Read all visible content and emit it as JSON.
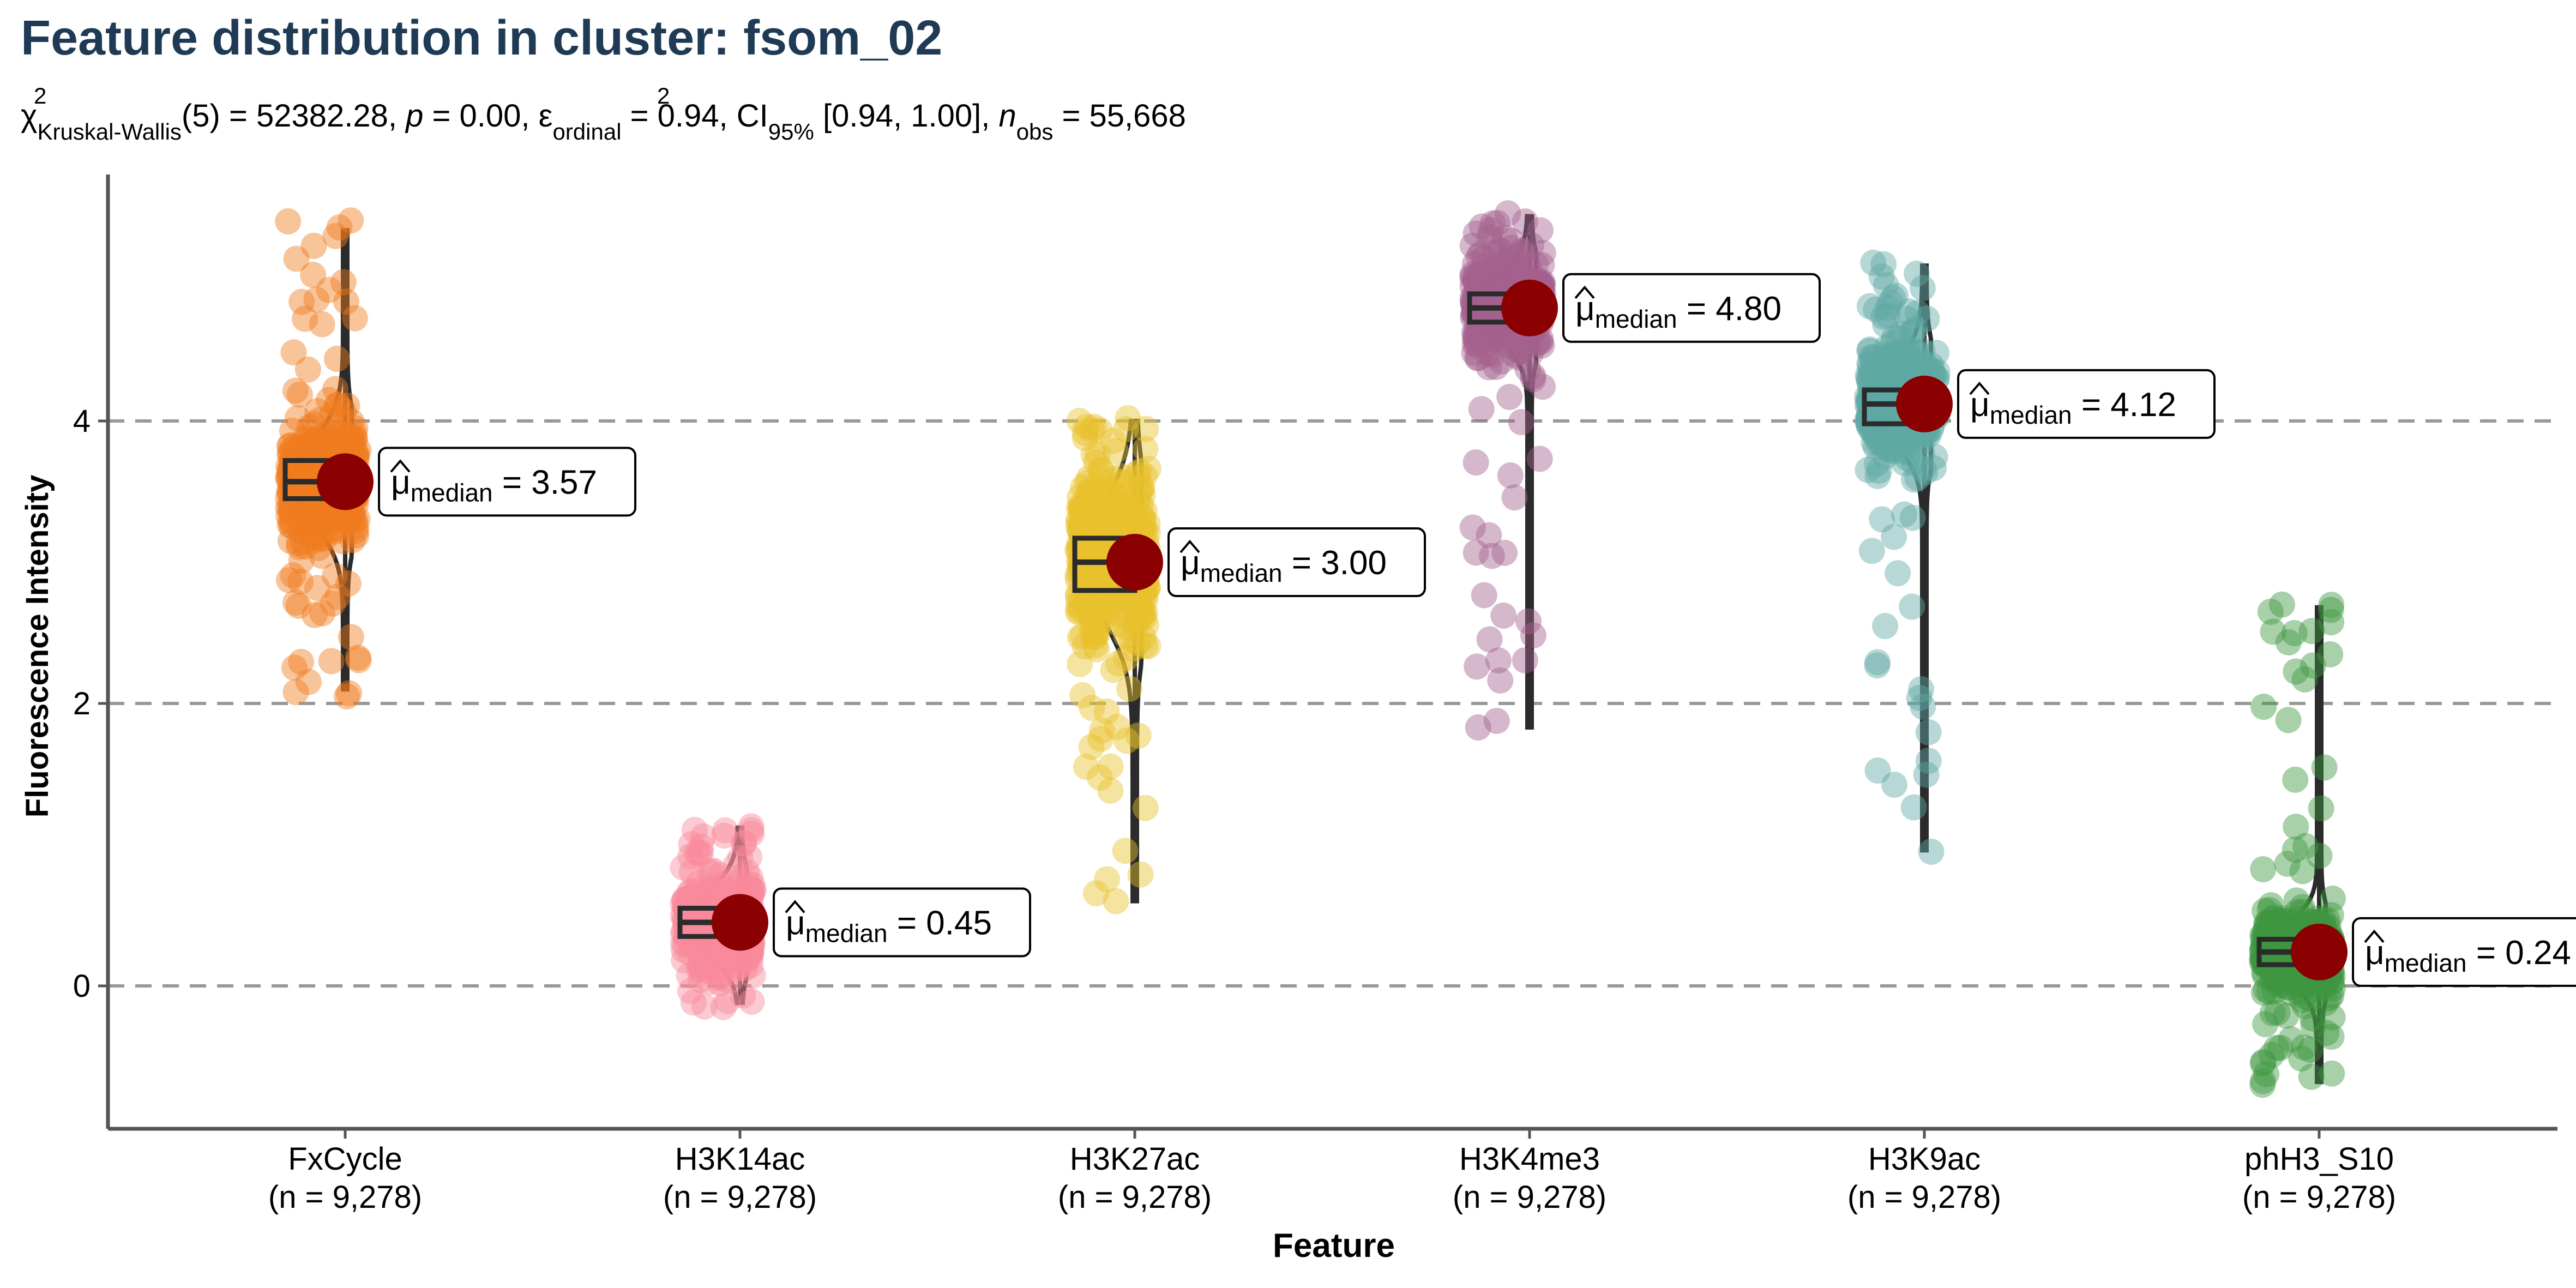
{
  "chart_data": {
    "type": "violin",
    "title": "Feature distribution in cluster: fsom_02",
    "subtitle": {
      "statistic": "52382.28",
      "df": "5",
      "p": "0.00",
      "effect": "0.94",
      "ci": "[0.94, 1.00]",
      "n_obs": "55,668"
    },
    "xlabel": "Feature",
    "ylabel": "Fluorescence Intensity",
    "ylim": [
      -1,
      5.5
    ],
    "yticks": [
      0,
      2,
      4
    ],
    "grid": "dashed horizontal at y ticks",
    "marker_color": "#8b0000",
    "categories": [
      {
        "name": "FxCycle",
        "n_label": "(n = 9,278)",
        "color": "#f07d1f",
        "median": 3.57,
        "q1": 3.45,
        "q3": 3.72,
        "min": 2.1,
        "max": 5.35,
        "pt_min": 2.05,
        "pt_max": 5.42,
        "label": "3.57"
      },
      {
        "name": "H3K14ac",
        "n_label": "(n = 9,278)",
        "color": "#f98a9b",
        "median": 0.45,
        "q1": 0.35,
        "q3": 0.55,
        "min": -0.12,
        "max": 1.12,
        "pt_min": -0.15,
        "pt_max": 1.13,
        "label": "0.45"
      },
      {
        "name": "H3K27ac",
        "n_label": "(n = 9,278)",
        "color": "#e8c22c",
        "median": 3.0,
        "q1": 2.8,
        "q3": 3.17,
        "min": 0.6,
        "max": 4.0,
        "pt_min": 0.6,
        "pt_max": 4.02,
        "label": "3.00"
      },
      {
        "name": "H3K4me3",
        "n_label": "(n = 9,278)",
        "color": "#a3618f",
        "median": 4.8,
        "q1": 4.7,
        "q3": 4.9,
        "min": 1.83,
        "max": 5.45,
        "pt_min": 1.83,
        "pt_max": 5.47,
        "label": "4.80"
      },
      {
        "name": "H3K9ac",
        "n_label": "(n = 9,278)",
        "color": "#5fa8a3",
        "median": 4.12,
        "q1": 3.98,
        "q3": 4.22,
        "min": 0.96,
        "max": 5.1,
        "pt_min": 0.95,
        "pt_max": 5.12,
        "label": "4.12"
      },
      {
        "name": "phH3_S10",
        "n_label": "(n = 9,278)",
        "color": "#3e9640",
        "median": 0.24,
        "q1": 0.15,
        "q3": 0.33,
        "min": -0.68,
        "max": 2.68,
        "pt_min": -0.7,
        "pt_max": 2.7,
        "label": "0.24"
      }
    ]
  },
  "text": {
    "median_prefix": "μ",
    "median_sub": "median",
    "equals": " = "
  }
}
